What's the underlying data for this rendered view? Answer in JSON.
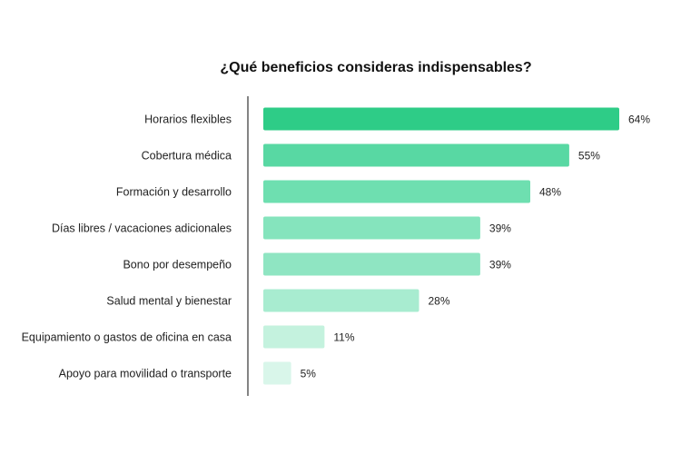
{
  "chart_data": {
    "type": "bar",
    "orientation": "horizontal",
    "title": "¿Qué beneficios consideras indispensables?",
    "xlabel": "",
    "ylabel": "",
    "xlim": [
      0,
      70
    ],
    "grid": false,
    "legend": "none",
    "value_suffix": "%",
    "categories": [
      "Horarios flexibles",
      "Cobertura médica",
      "Formación y desarrollo",
      "Días libres / vacaciones adicionales",
      "Bono por desempeño",
      "Salud mental y bienestar",
      "Equipamiento o gastos de oficina en casa",
      "Apoyo para movilidad o transporte"
    ],
    "values": [
      64,
      55,
      48,
      39,
      39,
      28,
      11,
      5
    ],
    "value_labels": [
      "64%",
      "55%",
      "48%",
      "39%",
      "39%",
      "28%",
      "11%",
      "5%"
    ],
    "colors": [
      "#2ecc87",
      "#58d8a3",
      "#6edfb0",
      "#85e4bd",
      "#8fe5c2",
      "#a8ecd0",
      "#c4f2de",
      "#d9f6ea"
    ],
    "axis_color": "#333333"
  }
}
